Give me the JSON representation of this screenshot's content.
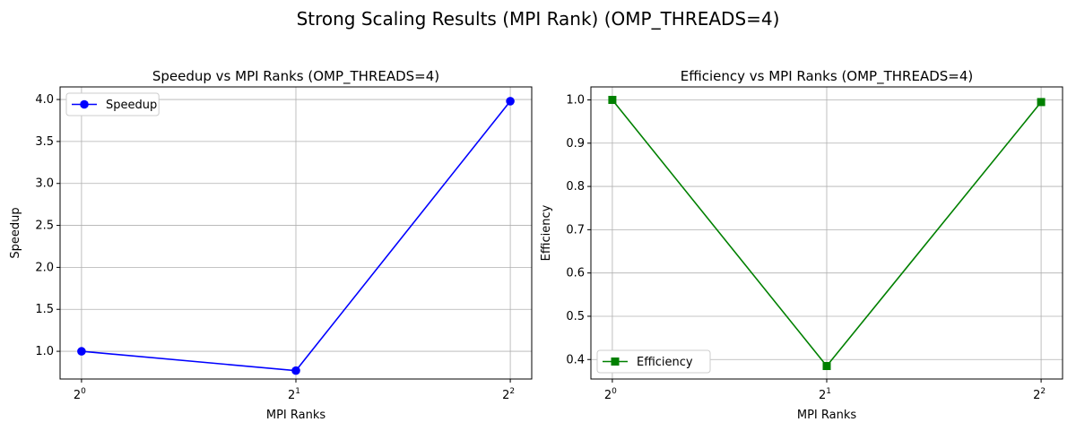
{
  "figure_title": "Strong Scaling Results (MPI Rank) (OMP_THREADS=4)",
  "chart_data": [
    {
      "type": "line",
      "title": "Speedup vs MPI Ranks (OMP_THREADS=4)",
      "xlabel": "MPI Ranks",
      "ylabel": "Speedup",
      "x_scale": "log2",
      "x": [
        1,
        2,
        4
      ],
      "x_tick_labels": [
        {
          "base": "2",
          "exp": "0"
        },
        {
          "base": "2",
          "exp": "1"
        },
        {
          "base": "2",
          "exp": "2"
        }
      ],
      "y_ticks": [
        1.0,
        1.5,
        2.0,
        2.5,
        3.0,
        3.5,
        4.0
      ],
      "y_tick_labels": [
        "1.0",
        "1.5",
        "2.0",
        "2.5",
        "3.0",
        "3.5",
        "4.0"
      ],
      "ylim": [
        0.67,
        4.15
      ],
      "grid": true,
      "legend_position": "upper-left",
      "series": [
        {
          "name": "Speedup",
          "color": "#0000ff",
          "marker": "circle",
          "values": [
            1.0,
            0.77,
            3.98
          ]
        }
      ]
    },
    {
      "type": "line",
      "title": "Efficiency vs MPI Ranks (OMP_THREADS=4)",
      "xlabel": "MPI Ranks",
      "ylabel": "Efficiency",
      "x_scale": "log2",
      "x": [
        1,
        2,
        4
      ],
      "x_tick_labels": [
        {
          "base": "2",
          "exp": "0"
        },
        {
          "base": "2",
          "exp": "1"
        },
        {
          "base": "2",
          "exp": "2"
        }
      ],
      "y_ticks": [
        0.4,
        0.5,
        0.6,
        0.7,
        0.8,
        0.9,
        1.0
      ],
      "y_tick_labels": [
        "0.4",
        "0.5",
        "0.6",
        "0.7",
        "0.8",
        "0.9",
        "1.0"
      ],
      "ylim": [
        0.355,
        1.03
      ],
      "grid": true,
      "legend_position": "lower-left",
      "series": [
        {
          "name": "Efficiency",
          "color": "#008000",
          "marker": "square",
          "values": [
            1.0,
            0.385,
            0.995
          ]
        }
      ]
    }
  ]
}
